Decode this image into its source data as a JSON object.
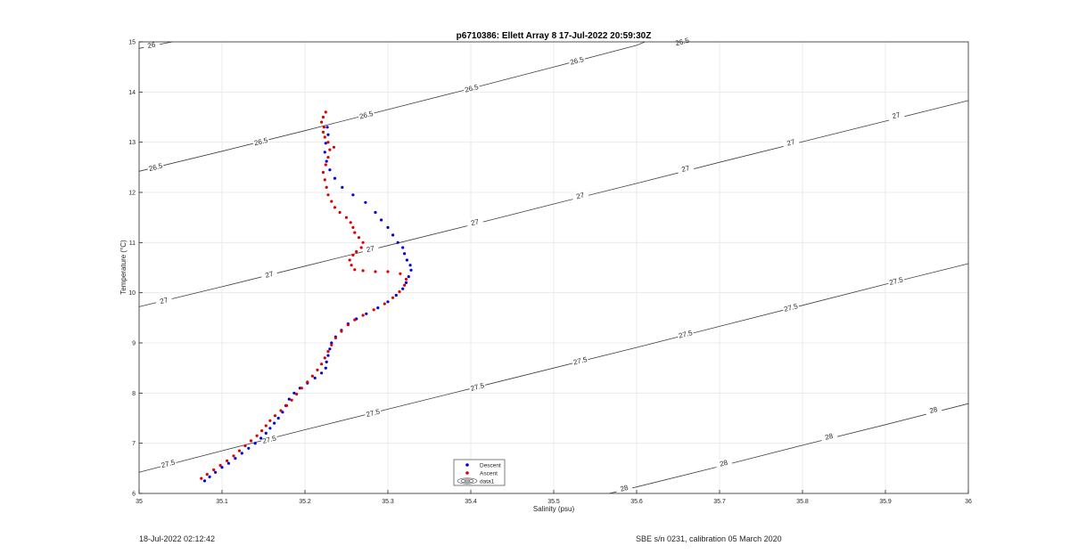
{
  "chart_data": {
    "type": "scatter",
    "title": "p6710386: Ellett Array 8 17-Jul-2022 20:59:30Z",
    "xlabel": "Salinity (psu)",
    "ylabel": "Temperature (°C)",
    "xlim": [
      35,
      36
    ],
    "ylim": [
      6,
      15
    ],
    "x_ticks": [
      35,
      35.1,
      35.2,
      35.3,
      35.4,
      35.5,
      35.6,
      35.7,
      35.8,
      35.9,
      36
    ],
    "x_tick_labels": [
      "35",
      "35.1",
      "35.2",
      "35.3",
      "35.4",
      "35.5",
      "35.6",
      "35.7",
      "35.8",
      "35.9",
      "36"
    ],
    "y_ticks": [
      6,
      7,
      8,
      9,
      10,
      11,
      12,
      13,
      14,
      15
    ],
    "y_tick_labels": [
      "6",
      "7",
      "8",
      "9",
      "10",
      "11",
      "12",
      "13",
      "14",
      "15"
    ],
    "grid": true,
    "legend_position": "bottom-center",
    "series": [
      {
        "name": "Descent",
        "color": "#0000e0",
        "marker": "dot",
        "points": [
          [
            35.079,
            6.25
          ],
          [
            35.085,
            6.33
          ],
          [
            35.092,
            6.42
          ],
          [
            35.1,
            6.52
          ],
          [
            35.108,
            6.6
          ],
          [
            35.116,
            6.7
          ],
          [
            35.124,
            6.8
          ],
          [
            35.132,
            6.9
          ],
          [
            35.14,
            7.0
          ],
          [
            35.147,
            7.1
          ],
          [
            35.153,
            7.2
          ],
          [
            35.158,
            7.3
          ],
          [
            35.163,
            7.4
          ],
          [
            35.168,
            7.5
          ],
          [
            35.173,
            7.62
          ],
          [
            35.177,
            7.75
          ],
          [
            35.181,
            7.88
          ],
          [
            35.187,
            8.0
          ],
          [
            35.194,
            8.1
          ],
          [
            35.203,
            8.2
          ],
          [
            35.212,
            8.3
          ],
          [
            35.22,
            8.4
          ],
          [
            35.225,
            8.5
          ],
          [
            35.226,
            8.62
          ],
          [
            35.228,
            8.75
          ],
          [
            35.23,
            8.88
          ],
          [
            35.232,
            9.0
          ],
          [
            35.237,
            9.12
          ],
          [
            35.244,
            9.25
          ],
          [
            35.252,
            9.38
          ],
          [
            35.262,
            9.48
          ],
          [
            35.274,
            9.58
          ],
          [
            35.288,
            9.7
          ],
          [
            35.3,
            9.82
          ],
          [
            35.31,
            9.95
          ],
          [
            35.318,
            10.08
          ],
          [
            35.322,
            10.2
          ],
          [
            35.325,
            10.32
          ],
          [
            35.328,
            10.45
          ],
          [
            35.327,
            10.55
          ],
          [
            35.323,
            10.65
          ],
          [
            35.32,
            10.78
          ],
          [
            35.318,
            10.9
          ],
          [
            35.312,
            11.0
          ],
          [
            35.306,
            11.15
          ],
          [
            35.3,
            11.3
          ],
          [
            35.292,
            11.45
          ],
          [
            35.285,
            11.6
          ],
          [
            35.273,
            11.8
          ],
          [
            35.258,
            11.95
          ],
          [
            35.245,
            12.1
          ],
          [
            35.236,
            12.28
          ],
          [
            35.23,
            12.45
          ],
          [
            35.226,
            12.62
          ],
          [
            35.224,
            12.8
          ],
          [
            35.225,
            12.98
          ],
          [
            35.228,
            13.15
          ],
          [
            35.227,
            13.3
          ]
        ]
      },
      {
        "name": "Ascent",
        "color": "#e00000",
        "marker": "dot",
        "points": [
          [
            35.075,
            6.3
          ],
          [
            35.082,
            6.38
          ],
          [
            35.09,
            6.47
          ],
          [
            35.098,
            6.56
          ],
          [
            35.106,
            6.65
          ],
          [
            35.114,
            6.75
          ],
          [
            35.121,
            6.85
          ],
          [
            35.128,
            6.95
          ],
          [
            35.135,
            7.05
          ],
          [
            35.142,
            7.15
          ],
          [
            35.148,
            7.25
          ],
          [
            35.153,
            7.35
          ],
          [
            35.158,
            7.45
          ],
          [
            35.164,
            7.55
          ],
          [
            35.171,
            7.65
          ],
          [
            35.178,
            7.75
          ],
          [
            35.184,
            7.86
          ],
          [
            35.19,
            7.98
          ],
          [
            35.196,
            8.1
          ],
          [
            35.203,
            8.22
          ],
          [
            35.209,
            8.34
          ],
          [
            35.215,
            8.46
          ],
          [
            35.22,
            8.58
          ],
          [
            35.224,
            8.7
          ],
          [
            35.228,
            8.83
          ],
          [
            35.232,
            8.96
          ],
          [
            35.237,
            9.1
          ],
          [
            35.244,
            9.23
          ],
          [
            35.252,
            9.36
          ],
          [
            35.26,
            9.46
          ],
          [
            35.27,
            9.55
          ],
          [
            35.283,
            9.66
          ],
          [
            35.296,
            9.78
          ],
          [
            35.306,
            9.9
          ],
          [
            35.314,
            10.02
          ],
          [
            35.32,
            10.15
          ],
          [
            35.322,
            10.27
          ],
          [
            35.315,
            10.38
          ],
          [
            35.3,
            10.42
          ],
          [
            35.285,
            10.42
          ],
          [
            35.27,
            10.44
          ],
          [
            35.26,
            10.46
          ],
          [
            35.256,
            10.55
          ],
          [
            35.254,
            10.65
          ],
          [
            35.258,
            10.75
          ],
          [
            35.262,
            10.82
          ],
          [
            35.268,
            10.9
          ],
          [
            35.27,
            11.0
          ],
          [
            35.265,
            11.1
          ],
          [
            35.26,
            11.2
          ],
          [
            35.258,
            11.3
          ],
          [
            35.255,
            11.4
          ],
          [
            35.25,
            11.5
          ],
          [
            35.242,
            11.6
          ],
          [
            35.236,
            11.7
          ],
          [
            35.232,
            11.82
          ],
          [
            35.228,
            11.95
          ],
          [
            35.226,
            12.1
          ],
          [
            35.224,
            12.25
          ],
          [
            35.222,
            12.4
          ],
          [
            35.225,
            12.55
          ],
          [
            35.228,
            12.7
          ],
          [
            35.23,
            12.85
          ],
          [
            35.235,
            12.9
          ],
          [
            35.228,
            13.0
          ],
          [
            35.224,
            13.1
          ],
          [
            35.222,
            13.2
          ],
          [
            35.223,
            13.3
          ],
          [
            35.22,
            13.4
          ],
          [
            35.222,
            13.5
          ],
          [
            35.225,
            13.6
          ]
        ]
      },
      {
        "name": "data1",
        "type": "contour",
        "color": "#404040",
        "lines": [
          {
            "level": "26",
            "points": [
              [
                35.0,
                14.87
              ],
              [
                35.04,
                15.0
              ]
            ],
            "labels": [
              [
                35.015,
                14.93
              ]
            ]
          },
          {
            "level": "26.5",
            "points": [
              [
                35.0,
                12.42
              ],
              [
                35.1,
                12.82
              ],
              [
                35.2,
                13.23
              ],
              [
                35.3,
                13.65
              ],
              [
                35.4,
                14.07
              ],
              [
                35.5,
                14.5
              ],
              [
                35.6,
                14.93
              ],
              [
                35.61,
                15.0
              ]
            ],
            "labels": [
              [
                35.02,
                12.5
              ],
              [
                35.147,
                13.01
              ],
              [
                35.274,
                13.54
              ],
              [
                35.401,
                14.07
              ],
              [
                35.528,
                14.62
              ],
              [
                35.655,
                15.0
              ]
            ]
          },
          {
            "level": "27",
            "points": [
              [
                35.0,
                9.72
              ],
              [
                35.1,
                10.12
              ],
              [
                35.2,
                10.53
              ],
              [
                35.3,
                10.94
              ],
              [
                35.4,
                11.35
              ],
              [
                35.5,
                11.77
              ],
              [
                35.6,
                12.18
              ],
              [
                35.7,
                12.6
              ],
              [
                35.8,
                13.01
              ],
              [
                35.9,
                13.42
              ],
              [
                36.0,
                13.83
              ]
            ],
            "labels": [
              [
                35.03,
                9.84
              ],
              [
                35.157,
                10.36
              ],
              [
                35.279,
                10.87
              ],
              [
                35.405,
                11.4
              ],
              [
                35.532,
                11.93
              ],
              [
                35.659,
                12.47
              ],
              [
                35.786,
                12.99
              ],
              [
                35.913,
                13.53
              ]
            ]
          },
          {
            "level": "27.5",
            "points": [
              [
                35.0,
                6.42
              ],
              [
                35.1,
                6.85
              ],
              [
                35.2,
                7.27
              ],
              [
                35.3,
                7.68
              ],
              [
                35.4,
                8.09
              ],
              [
                35.5,
                8.5
              ],
              [
                35.6,
                8.91
              ],
              [
                35.7,
                9.33
              ],
              [
                35.8,
                9.75
              ],
              [
                35.9,
                10.17
              ],
              [
                36.0,
                10.58
              ]
            ],
            "labels": [
              [
                35.035,
                6.59
              ],
              [
                35.157,
                7.07
              ],
              [
                35.282,
                7.6
              ],
              [
                35.408,
                8.12
              ],
              [
                35.532,
                8.64
              ],
              [
                35.659,
                9.17
              ],
              [
                35.786,
                9.7
              ],
              [
                35.913,
                10.23
              ]
            ]
          },
          {
            "level": "28",
            "points": [
              [
                35.567,
                6.0
              ],
              [
                35.6,
                6.13
              ],
              [
                35.7,
                6.54
              ],
              [
                35.8,
                6.96
              ],
              [
                35.9,
                7.37
              ],
              [
                36.0,
                7.79
              ]
            ],
            "labels": [
              [
                35.585,
                6.1
              ],
              [
                35.705,
                6.6
              ],
              [
                35.832,
                7.13
              ],
              [
                35.958,
                7.66
              ]
            ]
          }
        ]
      }
    ]
  },
  "legend": {
    "entries": [
      "Descent",
      "Ascent",
      "data1"
    ]
  },
  "footer": {
    "left": "18-Jul-2022 02:12:42",
    "right": "SBE s/n 0231, calibration 05 March 2020"
  }
}
